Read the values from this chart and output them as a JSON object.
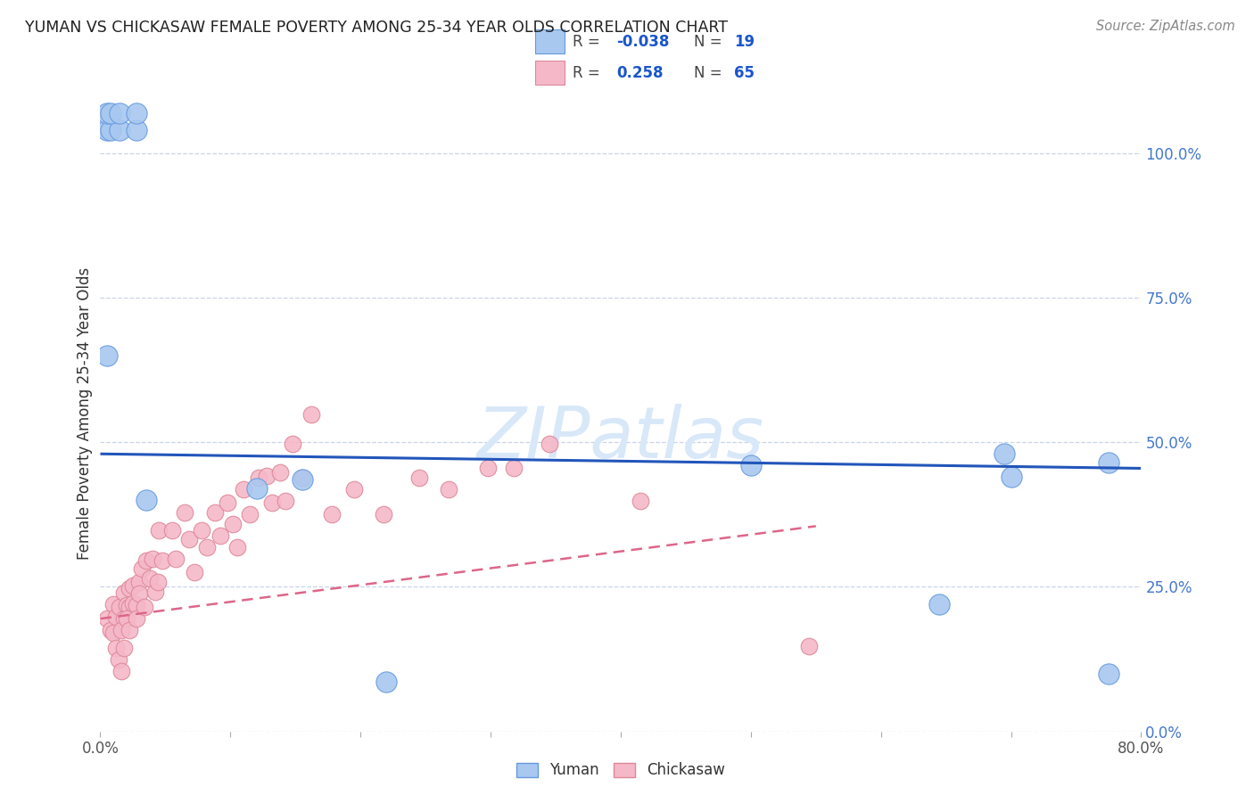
{
  "title": "YUMAN VS CHICKASAW FEMALE POVERTY AMONG 25-34 YEAR OLDS CORRELATION CHART",
  "source": "Source: ZipAtlas.com",
  "ylabel": "Female Poverty Among 25-34 Year Olds",
  "xlim": [
    0.0,
    0.8
  ],
  "ylim": [
    0.0,
    1.1
  ],
  "xticks": [
    0.0,
    0.1,
    0.2,
    0.3,
    0.4,
    0.5,
    0.6,
    0.7,
    0.8
  ],
  "xticklabels": [
    "0.0%",
    "",
    "",
    "",
    "",
    "",
    "",
    "",
    "80.0%"
  ],
  "yticks_right": [
    0.0,
    0.25,
    0.5,
    0.75,
    1.0
  ],
  "yticklabels_right": [
    "0.0%",
    "25.0%",
    "50.0%",
    "75.0%",
    "100.0%"
  ],
  "yuman_color": "#a8c8f0",
  "yuman_edge": "#6699dd",
  "chickasaw_color": "#f5b8c8",
  "chickasaw_edge": "#dd8899",
  "legend_label_color": "#444444",
  "legend_value_color": "#1a56cc",
  "watermark_color": "#d8e8f8",
  "grid_color": "#c8d4e8",
  "yuman_R": -0.038,
  "yuman_N": 19,
  "chickasaw_R": 0.258,
  "chickasaw_N": 65,
  "blue_line_x0": 0.0,
  "blue_line_y0": 0.48,
  "blue_line_x1": 0.8,
  "blue_line_y1": 0.455,
  "pink_line_x0": 0.0,
  "pink_line_y0": 0.195,
  "pink_line_x1": 0.55,
  "pink_line_y1": 0.355,
  "yuman_points_x": [
    0.005,
    0.008,
    0.015,
    0.028,
    0.005,
    0.008,
    0.015,
    0.028,
    0.005,
    0.035,
    0.12,
    0.155,
    0.22,
    0.5,
    0.645,
    0.695,
    0.7,
    0.775,
    0.775
  ],
  "yuman_points_y": [
    1.04,
    1.04,
    1.04,
    1.04,
    1.07,
    1.07,
    1.07,
    1.07,
    0.65,
    0.4,
    0.42,
    0.435,
    0.085,
    0.46,
    0.22,
    0.48,
    0.44,
    0.465,
    0.1
  ],
  "chickasaw_points_x": [
    0.005,
    0.008,
    0.01,
    0.012,
    0.014,
    0.016,
    0.01,
    0.012,
    0.015,
    0.018,
    0.016,
    0.018,
    0.02,
    0.022,
    0.02,
    0.018,
    0.022,
    0.025,
    0.022,
    0.025,
    0.028,
    0.03,
    0.028,
    0.032,
    0.03,
    0.035,
    0.038,
    0.034,
    0.04,
    0.042,
    0.045,
    0.048,
    0.044,
    0.055,
    0.058,
    0.065,
    0.068,
    0.072,
    0.078,
    0.082,
    0.088,
    0.092,
    0.098,
    0.102,
    0.105,
    0.11,
    0.115,
    0.122,
    0.128,
    0.132,
    0.138,
    0.142,
    0.148,
    0.155,
    0.162,
    0.178,
    0.195,
    0.218,
    0.245,
    0.268,
    0.298,
    0.318,
    0.345,
    0.415,
    0.545
  ],
  "chickasaw_points_y": [
    0.195,
    0.175,
    0.17,
    0.145,
    0.125,
    0.105,
    0.22,
    0.198,
    0.215,
    0.195,
    0.175,
    0.24,
    0.218,
    0.215,
    0.195,
    0.145,
    0.248,
    0.222,
    0.175,
    0.252,
    0.218,
    0.258,
    0.195,
    0.282,
    0.238,
    0.295,
    0.265,
    0.215,
    0.298,
    0.242,
    0.348,
    0.295,
    0.258,
    0.348,
    0.298,
    0.378,
    0.332,
    0.275,
    0.348,
    0.318,
    0.378,
    0.338,
    0.395,
    0.358,
    0.318,
    0.418,
    0.375,
    0.438,
    0.442,
    0.395,
    0.448,
    0.398,
    0.498,
    0.438,
    0.548,
    0.375,
    0.418,
    0.375,
    0.438,
    0.418,
    0.455,
    0.455,
    0.498,
    0.398,
    0.148
  ]
}
